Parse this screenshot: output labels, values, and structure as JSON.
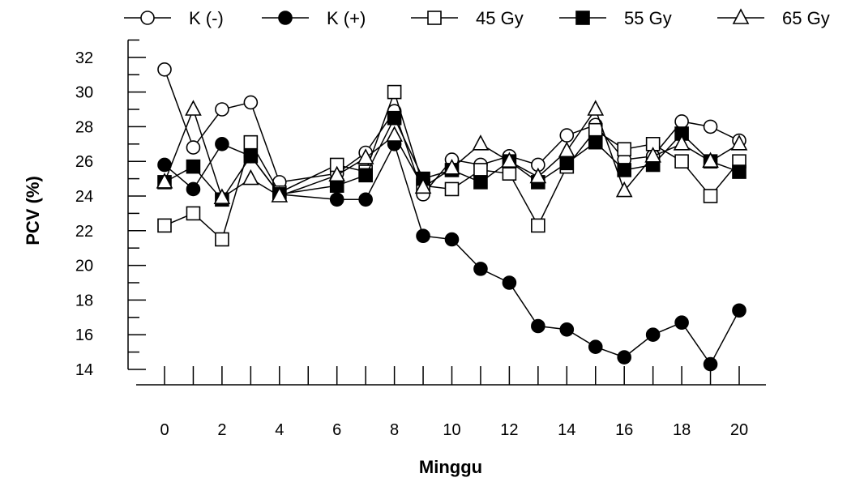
{
  "chart_data": {
    "type": "line",
    "title": "",
    "xlabel": "Minggu",
    "ylabel": "PCV (%)",
    "xlim": [
      0,
      20
    ],
    "ylim": [
      14,
      33
    ],
    "x_ticks": [
      0,
      2,
      4,
      6,
      8,
      10,
      12,
      14,
      16,
      18,
      20
    ],
    "y_ticks": [
      14,
      16,
      18,
      20,
      22,
      24,
      26,
      28,
      30,
      32
    ],
    "grid": false,
    "legend_position": "top",
    "x": [
      0,
      1,
      2,
      3,
      4,
      6,
      7,
      8,
      9,
      10,
      11,
      12,
      13,
      14,
      15,
      16,
      17,
      18,
      19,
      20
    ],
    "series": [
      {
        "name": "K (-)",
        "marker": "circle-open",
        "values": [
          31.3,
          26.8,
          29.0,
          29.4,
          24.8,
          25.3,
          26.5,
          28.9,
          24.1,
          26.1,
          25.8,
          26.3,
          25.8,
          27.5,
          28.1,
          26.1,
          26.3,
          28.3,
          28.0,
          27.2
        ]
      },
      {
        "name": "K (+)",
        "marker": "circle-filled",
        "values": [
          25.8,
          24.4,
          27.0,
          26.3,
          24.1,
          23.8,
          23.8,
          27.0,
          21.7,
          21.5,
          19.8,
          19.0,
          16.5,
          16.3,
          15.3,
          14.7,
          16.0,
          16.7,
          14.3,
          17.4
        ]
      },
      {
        "name": "45 Gy",
        "marker": "square-open",
        "values": [
          22.3,
          23.0,
          21.5,
          27.1,
          24.2,
          25.8,
          25.4,
          30.0,
          24.6,
          24.4,
          25.5,
          25.3,
          22.3,
          25.7,
          27.8,
          26.7,
          27.0,
          26.0,
          24.0,
          26.0
        ]
      },
      {
        "name": "55 Gy",
        "marker": "square-filled",
        "values": [
          24.8,
          25.7,
          23.8,
          26.3,
          24.1,
          24.6,
          25.2,
          28.5,
          25.0,
          25.5,
          24.8,
          26.0,
          24.8,
          25.9,
          27.1,
          25.5,
          25.8,
          27.6,
          26.0,
          25.4
        ]
      },
      {
        "name": "65 Gy",
        "marker": "triangle-open",
        "values": [
          24.8,
          29.0,
          23.9,
          25.0,
          24.0,
          25.2,
          26.2,
          27.5,
          24.5,
          25.6,
          27.0,
          26.0,
          25.1,
          26.6,
          29.0,
          24.3,
          26.3,
          27.0,
          26.0,
          27.0
        ]
      }
    ]
  }
}
